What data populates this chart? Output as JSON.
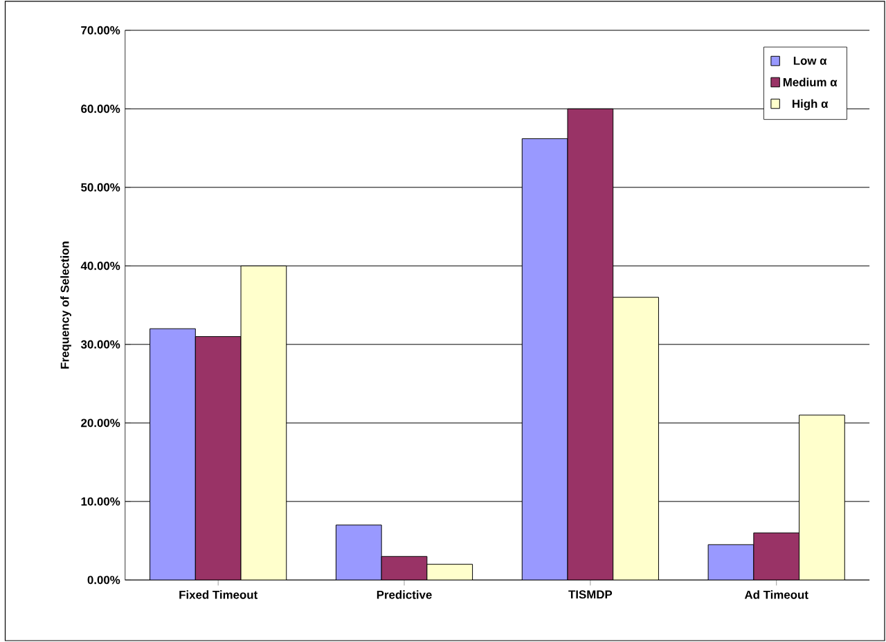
{
  "chart_data": {
    "type": "bar",
    "ylabel": "Frequency of Selection",
    "categories": [
      "Fixed Timeout",
      "Predictive",
      "TISMDP",
      "Ad Timeout"
    ],
    "series": [
      {
        "name": "Low α",
        "color": "#9999ff",
        "values": [
          32,
          7,
          56.2,
          4.5
        ]
      },
      {
        "name": "Medium α",
        "color": "#993366",
        "values": [
          31,
          3,
          60,
          6
        ]
      },
      {
        "name": "High α",
        "color": "#ffffcc",
        "values": [
          40,
          2,
          36,
          21
        ]
      }
    ],
    "ylim": [
      0,
      70
    ],
    "yticks": [
      {
        "value": 0,
        "label": "0.00%"
      },
      {
        "value": 10,
        "label": "10.00%"
      },
      {
        "value": 20,
        "label": "20.00%"
      },
      {
        "value": 30,
        "label": "30.00%"
      },
      {
        "value": 40,
        "label": "40.00%"
      },
      {
        "value": 50,
        "label": "50.00%"
      },
      {
        "value": 60,
        "label": "60.00%"
      },
      {
        "value": 70,
        "label": "70.00%"
      }
    ],
    "grid": "y",
    "legend": "top right"
  }
}
